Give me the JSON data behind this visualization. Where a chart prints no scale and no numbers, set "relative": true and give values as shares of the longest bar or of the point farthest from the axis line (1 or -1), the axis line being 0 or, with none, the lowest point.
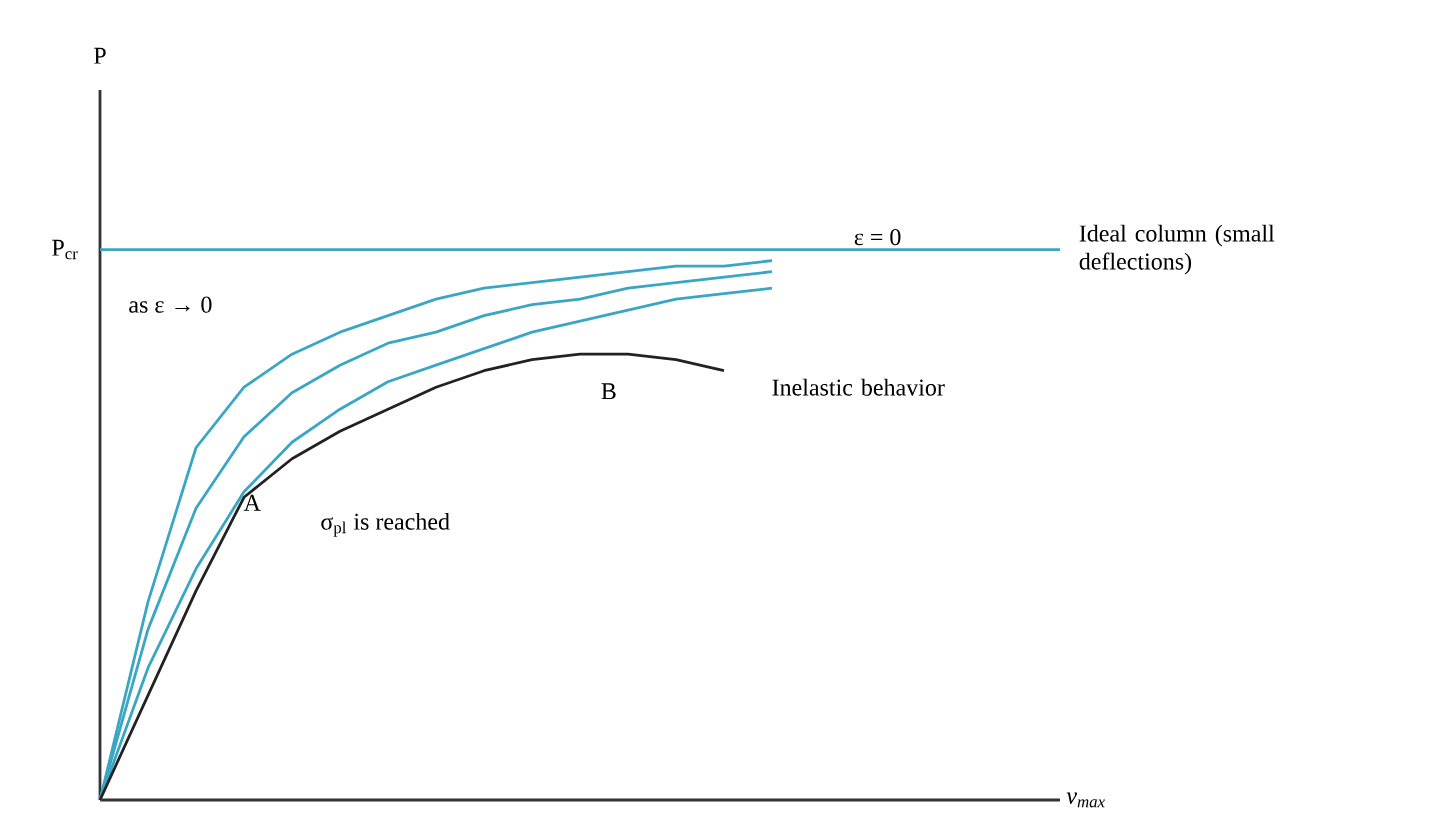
{
  "chart_data": {
    "type": "line",
    "relative": true,
    "xlabel": "v$_{max}$",
    "categories": [
      null,
      null,
      null,
      null,
      null,
      null,
      null,
      null,
      null,
      null,
      null,
      null,
      null,
      null,
      null,
      null,
      null,
      null,
      null,
      null,
      null
    ],
    "series": [
      {
        "name": "Ideal column (small deflections)",
        "color": "#3aa6c4",
        "values": [
          1,
          1,
          1,
          1,
          1,
          1,
          1,
          1,
          1,
          1,
          1,
          1,
          1,
          1,
          1,
          1,
          1,
          1,
          1,
          1,
          1
        ]
      },
      {
        "color": "#3aa6c4",
        "values": [
          0,
          0.36,
          0.64,
          0.75,
          0.81,
          0.85,
          0.88,
          0.91,
          0.93,
          0.94,
          0.95,
          0.96,
          0.97,
          0.97,
          0.98,
          null,
          null,
          null,
          null,
          null,
          null
        ]
      },
      {
        "color": "#3aa6c4",
        "values": [
          0,
          0.31,
          0.53,
          0.66,
          0.74,
          0.79,
          0.83,
          0.85,
          0.88,
          0.9,
          0.91,
          0.93,
          0.94,
          0.95,
          0.96,
          null,
          null,
          null,
          null,
          null,
          null
        ]
      },
      {
        "color": "#3aa6c4",
        "values": [
          0,
          0.24,
          0.42,
          0.56,
          0.65,
          0.71,
          0.76,
          0.79,
          0.82,
          0.85,
          0.87,
          0.89,
          0.91,
          0.92,
          0.93,
          null,
          null,
          null,
          null,
          null,
          null
        ]
      },
      {
        "name": "Inelastic behavior",
        "color": "#222222",
        "values": [
          0,
          0.19,
          0.38,
          0.55,
          0.62,
          0.67,
          0.71,
          0.75,
          0.78,
          0.8,
          0.81,
          0.81,
          0.8,
          0.78,
          null,
          null,
          null,
          null,
          null,
          null,
          null
        ]
      }
    ],
    "annotations": [
      "P",
      "P$_{cr}$",
      "ε = 0",
      "as ε → 0",
      "A",
      "B",
      "σ$_{pl}$ is reached"
    ]
  }
}
